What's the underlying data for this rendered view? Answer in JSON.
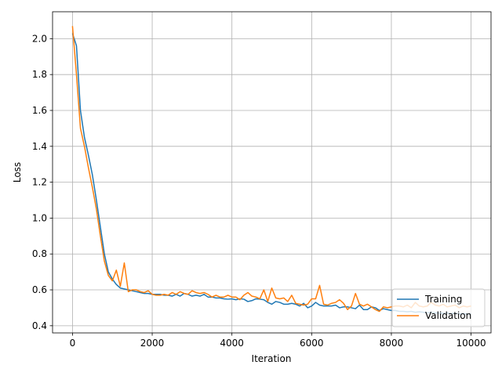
{
  "chart_data": {
    "type": "line",
    "x_label": "Iteration",
    "y_label": "Loss",
    "x": [
      0,
      100,
      200,
      300,
      400,
      500,
      600,
      700,
      800,
      900,
      1000,
      1100,
      1200,
      1300,
      1400,
      1500,
      1600,
      1700,
      1800,
      1900,
      2000,
      2100,
      2200,
      2300,
      2400,
      2500,
      2600,
      2700,
      2800,
      2900,
      3000,
      3100,
      3200,
      3300,
      3400,
      3500,
      3600,
      3700,
      3800,
      3900,
      4000,
      4100,
      4200,
      4300,
      4400,
      4500,
      4600,
      4700,
      4800,
      4900,
      5000,
      5100,
      5200,
      5300,
      5400,
      5500,
      5600,
      5700,
      5800,
      5900,
      6000,
      6100,
      6200,
      6300,
      6400,
      6500,
      6600,
      6700,
      6800,
      6900,
      7000,
      7100,
      7200,
      7300,
      7400,
      7500,
      7600,
      7700,
      7800,
      7900,
      8000,
      8100,
      8200,
      8300,
      8400,
      8500,
      8600,
      8700,
      8800,
      8900,
      9000,
      9100,
      9200,
      9300,
      9400,
      9500,
      9600,
      9700,
      9800,
      9900,
      10000
    ],
    "series": [
      {
        "name": "Training",
        "color": "#1f77b4",
        "values": [
          2.03,
          1.96,
          1.6,
          1.45,
          1.35,
          1.24,
          1.1,
          0.95,
          0.8,
          0.7,
          0.66,
          0.63,
          0.61,
          0.605,
          0.6,
          0.595,
          0.59,
          0.585,
          0.58,
          0.58,
          0.575,
          0.575,
          0.575,
          0.57,
          0.57,
          0.565,
          0.575,
          0.565,
          0.58,
          0.575,
          0.565,
          0.57,
          0.565,
          0.575,
          0.56,
          0.56,
          0.555,
          0.555,
          0.55,
          0.548,
          0.55,
          0.545,
          0.55,
          0.548,
          0.535,
          0.54,
          0.55,
          0.548,
          0.545,
          0.53,
          0.52,
          0.535,
          0.53,
          0.52,
          0.52,
          0.525,
          0.52,
          0.51,
          0.525,
          0.5,
          0.51,
          0.53,
          0.515,
          0.51,
          0.51,
          0.51,
          0.515,
          0.5,
          0.505,
          0.505,
          0.5,
          0.495,
          0.515,
          0.49,
          0.49,
          0.505,
          0.5,
          0.485,
          0.495,
          0.49,
          0.485,
          0.485,
          0.48,
          0.48,
          0.478,
          0.48,
          0.475,
          0.478,
          0.475,
          0.472,
          0.475,
          0.472,
          0.47,
          0.47,
          0.472,
          0.468,
          0.47,
          0.466,
          0.468,
          0.465,
          0.465
        ]
      },
      {
        "name": "Validation",
        "color": "#ff7f0e",
        "values": [
          2.07,
          1.8,
          1.5,
          1.4,
          1.28,
          1.17,
          1.05,
          0.9,
          0.76,
          0.68,
          0.65,
          0.71,
          0.62,
          0.75,
          0.59,
          0.6,
          0.6,
          0.59,
          0.585,
          0.595,
          0.575,
          0.57,
          0.57,
          0.575,
          0.57,
          0.585,
          0.575,
          0.59,
          0.58,
          0.575,
          0.595,
          0.585,
          0.58,
          0.585,
          0.575,
          0.56,
          0.57,
          0.56,
          0.56,
          0.57,
          0.56,
          0.56,
          0.545,
          0.57,
          0.585,
          0.565,
          0.56,
          0.55,
          0.6,
          0.535,
          0.61,
          0.555,
          0.55,
          0.555,
          0.535,
          0.57,
          0.525,
          0.52,
          0.515,
          0.52,
          0.55,
          0.55,
          0.625,
          0.52,
          0.515,
          0.525,
          0.53,
          0.545,
          0.525,
          0.49,
          0.51,
          0.58,
          0.52,
          0.51,
          0.52,
          0.505,
          0.49,
          0.48,
          0.505,
          0.5,
          0.505,
          0.51,
          0.51,
          0.505,
          0.515,
          0.5,
          0.53,
          0.51,
          0.505,
          0.51,
          0.53,
          0.515,
          0.51,
          0.52,
          0.505,
          0.51,
          0.515,
          0.5,
          0.51,
          0.505,
          0.51
        ]
      }
    ],
    "xlim": [
      -500,
      10500
    ],
    "xticks": [
      0,
      2000,
      4000,
      6000,
      8000,
      10000
    ],
    "ylim": [
      0.36,
      2.15
    ],
    "yticks": [
      0.4,
      0.6,
      0.8,
      {
        "value": 1,
        "label": "1.0"
      },
      1.2,
      1.4,
      1.6,
      1.8,
      {
        "value": 2,
        "label": "2.0"
      }
    ],
    "grid": true,
    "legend": "lower right"
  }
}
